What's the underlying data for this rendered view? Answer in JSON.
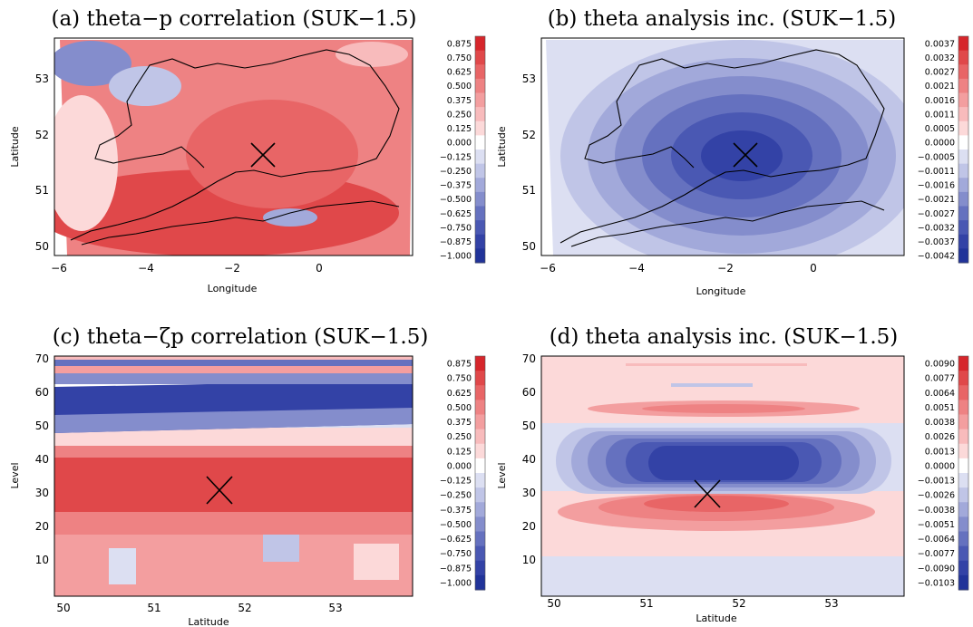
{
  "chart_data": [
    {
      "type": "heatmap",
      "title": "(a) theta−p correlation (SUK−1.5)",
      "xlabel": "Longitude",
      "ylabel": "Latitude",
      "xlim": [
        -6.2,
        1.9
      ],
      "ylim": [
        49.8,
        53.75
      ],
      "x_ticks": [
        -6,
        -4,
        -2,
        0
      ],
      "x_tick_labels": [
        "−6",
        "−4",
        "−2",
        "0"
      ],
      "y_ticks": [
        50,
        51,
        52,
        53
      ],
      "y_tick_labels": [
        "50",
        "51",
        "52",
        "53"
      ],
      "marker": {
        "symbol": "X",
        "x": -1.3,
        "y": 51.6
      },
      "coastline": true,
      "colorbar": [
        "0.875",
        "0.750",
        "0.625",
        "0.500",
        "0.375",
        "0.250",
        "0.125",
        "0.000",
        "−0.125",
        "−0.250",
        "−0.375",
        "−0.500",
        "−0.625",
        "−0.750",
        "−0.875",
        "−1.000"
      ],
      "field": "mostly positive (red), strongest over southern England, negative patches in the north-west"
    },
    {
      "type": "heatmap",
      "title": "(b) theta analysis inc. (SUK−1.5)",
      "xlabel": "Longitude",
      "ylabel": "Latitude",
      "xlim": [
        -6.2,
        1.9
      ],
      "ylim": [
        49.8,
        53.75
      ],
      "x_ticks": [
        -6,
        -4,
        -2,
        0
      ],
      "x_tick_labels": [
        "−6",
        "−4",
        "−2",
        "0"
      ],
      "y_ticks": [
        50,
        51,
        52,
        53
      ],
      "y_tick_labels": [
        "50",
        "51",
        "52",
        "53"
      ],
      "marker": {
        "symbol": "X",
        "x": -1.5,
        "y": 51.6
      },
      "coastline": true,
      "colorbar": [
        "0.0037",
        "0.0032",
        "0.0027",
        "0.0021",
        "0.0016",
        "0.0011",
        "0.0005",
        "0.0000",
        "−0.0005",
        "−0.0011",
        "−0.0016",
        "−0.0021",
        "−0.0027",
        "−0.0032",
        "−0.0037",
        "−0.0042"
      ],
      "field": "negative increment, concentric ellipse centred on the marker, minimum about −0.0042"
    },
    {
      "type": "heatmap",
      "title": "(c) theta−ζp correlation (SUK−1.5)",
      "xlabel": "Latitude",
      "ylabel": "Level",
      "xlim": [
        49.8,
        53.8
      ],
      "ylim": [
        0,
        71
      ],
      "x_ticks": [
        50,
        51,
        52,
        53
      ],
      "x_tick_labels": [
        "50",
        "51",
        "52",
        "53"
      ],
      "y_ticks": [
        10,
        20,
        30,
        40,
        50,
        60,
        70
      ],
      "y_tick_labels": [
        "10",
        "20",
        "30",
        "40",
        "50",
        "60",
        "70"
      ],
      "marker": {
        "symbol": "X",
        "x": 51.7,
        "y": 30
      },
      "colorbar": [
        "0.875",
        "0.750",
        "0.625",
        "0.500",
        "0.375",
        "0.250",
        "0.125",
        "0.000",
        "−0.125",
        "−0.250",
        "−0.375",
        "−0.500",
        "−0.625",
        "−0.750",
        "−0.875",
        "−1.000"
      ],
      "field": "positive correlation below level 43, strong negative band near levels 45–58, alternating bands above 60"
    },
    {
      "type": "heatmap",
      "title": "(d) theta analysis inc. (SUK−1.5)",
      "xlabel": "Latitude",
      "ylabel": "Level",
      "xlim": [
        49.8,
        53.8
      ],
      "ylim": [
        0,
        71
      ],
      "x_ticks": [
        50,
        51,
        52,
        53
      ],
      "x_tick_labels": [
        "50",
        "51",
        "52",
        "53"
      ],
      "y_ticks": [
        10,
        20,
        30,
        40,
        50,
        60,
        70
      ],
      "y_tick_labels": [
        "10",
        "20",
        "30",
        "40",
        "50",
        "60",
        "70"
      ],
      "marker": {
        "symbol": "X",
        "x": 51.65,
        "y": 29
      },
      "colorbar": [
        "0.0090",
        "0.0077",
        "0.0064",
        "0.0051",
        "0.0038",
        "0.0026",
        "0.0013",
        "0.0000",
        "−0.0013",
        "−0.0026",
        "−0.0038",
        "−0.0051",
        "−0.0064",
        "−0.0077",
        "−0.0090",
        "−0.0103"
      ],
      "field": "negative core at levels 30–45 centred near 51.7, positive bands near levels 20–28 and 50–56"
    }
  ],
  "colors": {
    "scale": [
      "#d6262b",
      "#e0484a",
      "#e86566",
      "#ee8283",
      "#f39e9f",
      "#f8bbbc",
      "#fcd9d9",
      "#ffffff",
      "#dcdff2",
      "#c0c5e7",
      "#a2a9da",
      "#848dcc",
      "#6571bf",
      "#4a58b3",
      "#3342a6",
      "#213399"
    ]
  }
}
